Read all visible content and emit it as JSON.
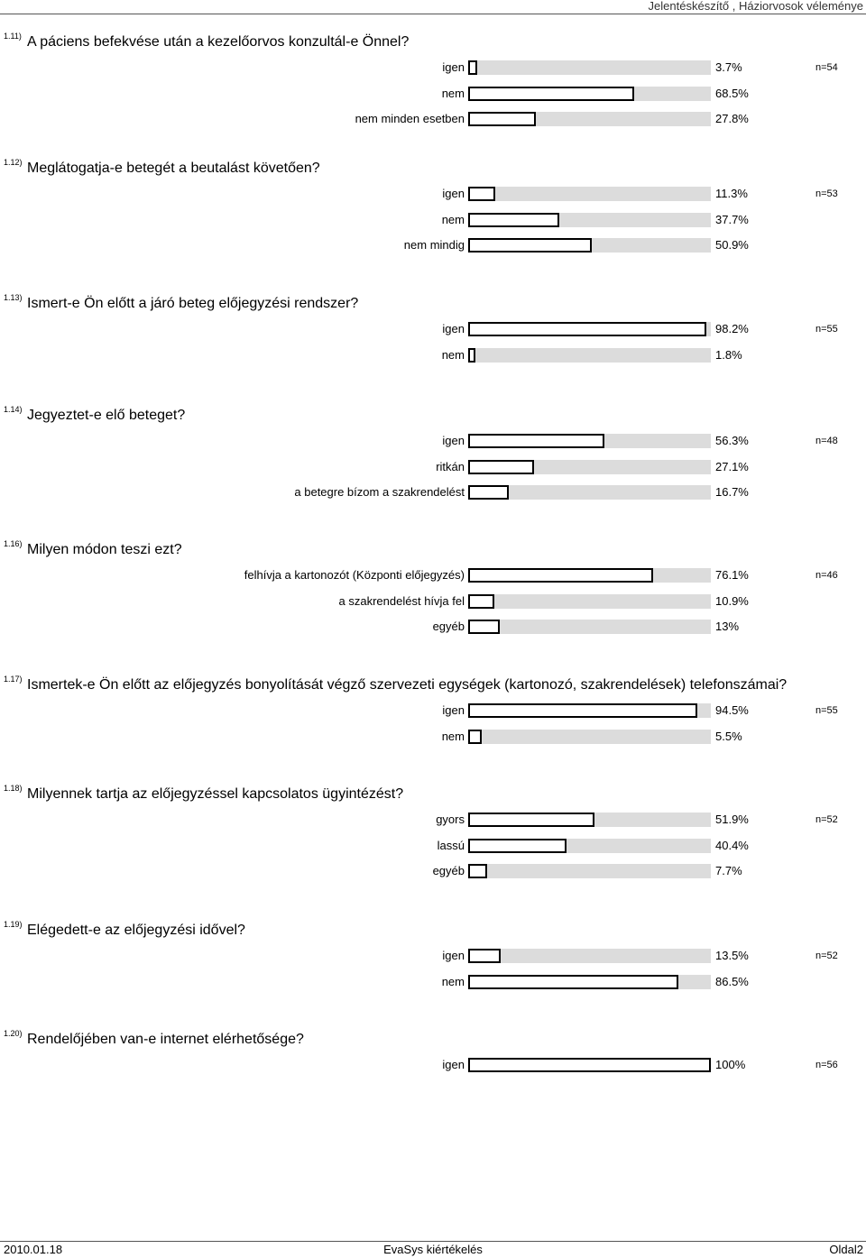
{
  "header": {
    "text": "Jelentéskészítő , Háziorvosok véleménye"
  },
  "questions": [
    {
      "num": "1.11)",
      "title": "A páciens befekvése után a kezelőorvos konzultál-e Önnel?",
      "n": "n=54",
      "options": [
        {
          "label": "igen",
          "pct_text": "3.7%",
          "value": 3.7
        },
        {
          "label": "nem",
          "pct_text": "68.5%",
          "value": 68.5
        },
        {
          "label": "nem minden esetben",
          "pct_text": "27.8%",
          "value": 27.8
        }
      ]
    },
    {
      "num": "1.12)",
      "title": "Meglátogatja-e betegét a beutalást követően?",
      "n": "n=53",
      "options": [
        {
          "label": "igen",
          "pct_text": "11.3%",
          "value": 11.3
        },
        {
          "label": "nem",
          "pct_text": "37.7%",
          "value": 37.7
        },
        {
          "label": "nem mindig",
          "pct_text": "50.9%",
          "value": 50.9
        }
      ]
    },
    {
      "num": "1.13)",
      "title": "Ismert-e Ön előtt a járó beteg előjegyzési rendszer?",
      "n": "n=55",
      "options": [
        {
          "label": "igen",
          "pct_text": "98.2%",
          "value": 98.2
        },
        {
          "label": "nem",
          "pct_text": "1.8%",
          "value": 1.8
        }
      ]
    },
    {
      "num": "1.14)",
      "title": "Jegyeztet-e elő beteget?",
      "n": "n=48",
      "options": [
        {
          "label": "igen",
          "pct_text": "56.3%",
          "value": 56.3
        },
        {
          "label": "ritkán",
          "pct_text": "27.1%",
          "value": 27.1
        },
        {
          "label": "a betegre bízom a szakrendelést",
          "pct_text": "16.7%",
          "value": 16.7
        }
      ]
    },
    {
      "num": "1.16)",
      "title": "Milyen módon teszi ezt?",
      "n": "n=46",
      "options": [
        {
          "label": "felhívja a kartonozót (Központi előjegyzés)",
          "pct_text": "76.1%",
          "value": 76.1
        },
        {
          "label": "a szakrendelést hívja fel",
          "pct_text": "10.9%",
          "value": 10.9
        },
        {
          "label": "egyéb",
          "pct_text": "13%",
          "value": 13
        }
      ]
    },
    {
      "num": "1.17)",
      "title": "Ismertek-e Ön előtt az előjegyzés bonyolítását végző szervezeti egységek (kartonozó, szakrendelések) telefonszámai?",
      "n": "n=55",
      "options": [
        {
          "label": "igen",
          "pct_text": "94.5%",
          "value": 94.5
        },
        {
          "label": "nem",
          "pct_text": "5.5%",
          "value": 5.5
        }
      ]
    },
    {
      "num": "1.18)",
      "title": "Milyennek tartja az előjegyzéssel kapcsolatos ügyintézést?",
      "n": "n=52",
      "options": [
        {
          "label": "gyors",
          "pct_text": "51.9%",
          "value": 51.9
        },
        {
          "label": "lassú",
          "pct_text": "40.4%",
          "value": 40.4
        },
        {
          "label": "egyéb",
          "pct_text": "7.7%",
          "value": 7.7
        }
      ]
    },
    {
      "num": "1.19)",
      "title": "Elégedett-e az előjegyzési idővel?",
      "n": "n=52",
      "options": [
        {
          "label": "igen",
          "pct_text": "13.5%",
          "value": 13.5
        },
        {
          "label": "nem",
          "pct_text": "86.5%",
          "value": 86.5
        }
      ]
    },
    {
      "num": "1.20)",
      "title": "Rendelőjében van-e internet elérhetősége?",
      "n": "n=56",
      "options": [
        {
          "label": "igen",
          "pct_text": "100%",
          "value": 100
        }
      ]
    }
  ],
  "footer": {
    "date": "2010.01.18",
    "center": "EvaSys kiértékelés",
    "page": "Oldal2"
  }
}
